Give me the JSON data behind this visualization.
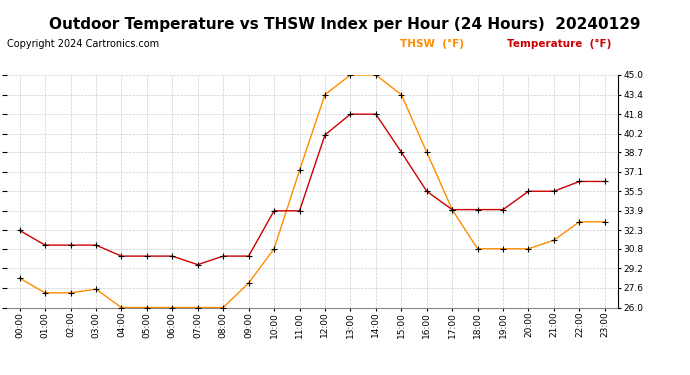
{
  "title": "Outdoor Temperature vs THSW Index per Hour (24 Hours)  20240129",
  "copyright": "Copyright 2024 Cartronics.com",
  "hours": [
    "00:00",
    "01:00",
    "02:00",
    "03:00",
    "04:00",
    "05:00",
    "06:00",
    "07:00",
    "08:00",
    "09:00",
    "10:00",
    "11:00",
    "12:00",
    "13:00",
    "14:00",
    "15:00",
    "16:00",
    "17:00",
    "18:00",
    "19:00",
    "20:00",
    "21:00",
    "22:00",
    "23:00"
  ],
  "temperature": [
    32.3,
    31.1,
    31.1,
    31.1,
    30.2,
    30.2,
    30.2,
    29.5,
    30.2,
    30.2,
    33.9,
    33.9,
    40.1,
    41.8,
    41.8,
    38.7,
    35.5,
    34.0,
    34.0,
    34.0,
    35.5,
    35.5,
    36.3,
    36.3
  ],
  "thsw": [
    28.4,
    27.2,
    27.2,
    27.5,
    26.0,
    26.0,
    26.0,
    26.0,
    26.0,
    28.0,
    30.8,
    37.2,
    43.4,
    45.0,
    45.0,
    43.4,
    38.7,
    34.0,
    30.8,
    30.8,
    30.8,
    31.5,
    33.0,
    33.0
  ],
  "temp_color": "#cc0000",
  "thsw_color": "#ff8c00",
  "marker": "+",
  "marker_color": "#000000",
  "ylim_min": 26.0,
  "ylim_max": 45.0,
  "ytick_labels": [
    "26.0",
    "27.6",
    "29.2",
    "30.8",
    "32.3",
    "33.9",
    "35.5",
    "37.1",
    "38.7",
    "40.2",
    "41.8",
    "43.4",
    "45.0"
  ],
  "ytick_values": [
    26.0,
    27.6,
    29.2,
    30.8,
    32.3,
    33.9,
    35.5,
    37.1,
    38.7,
    40.2,
    41.8,
    43.4,
    45.0
  ],
  "background_color": "#ffffff",
  "grid_color": "#cccccc",
  "title_fontsize": 11,
  "copyright_fontsize": 7,
  "legend_thsw": "THSW  (°F)",
  "legend_temp": "Temperature  (°F)"
}
